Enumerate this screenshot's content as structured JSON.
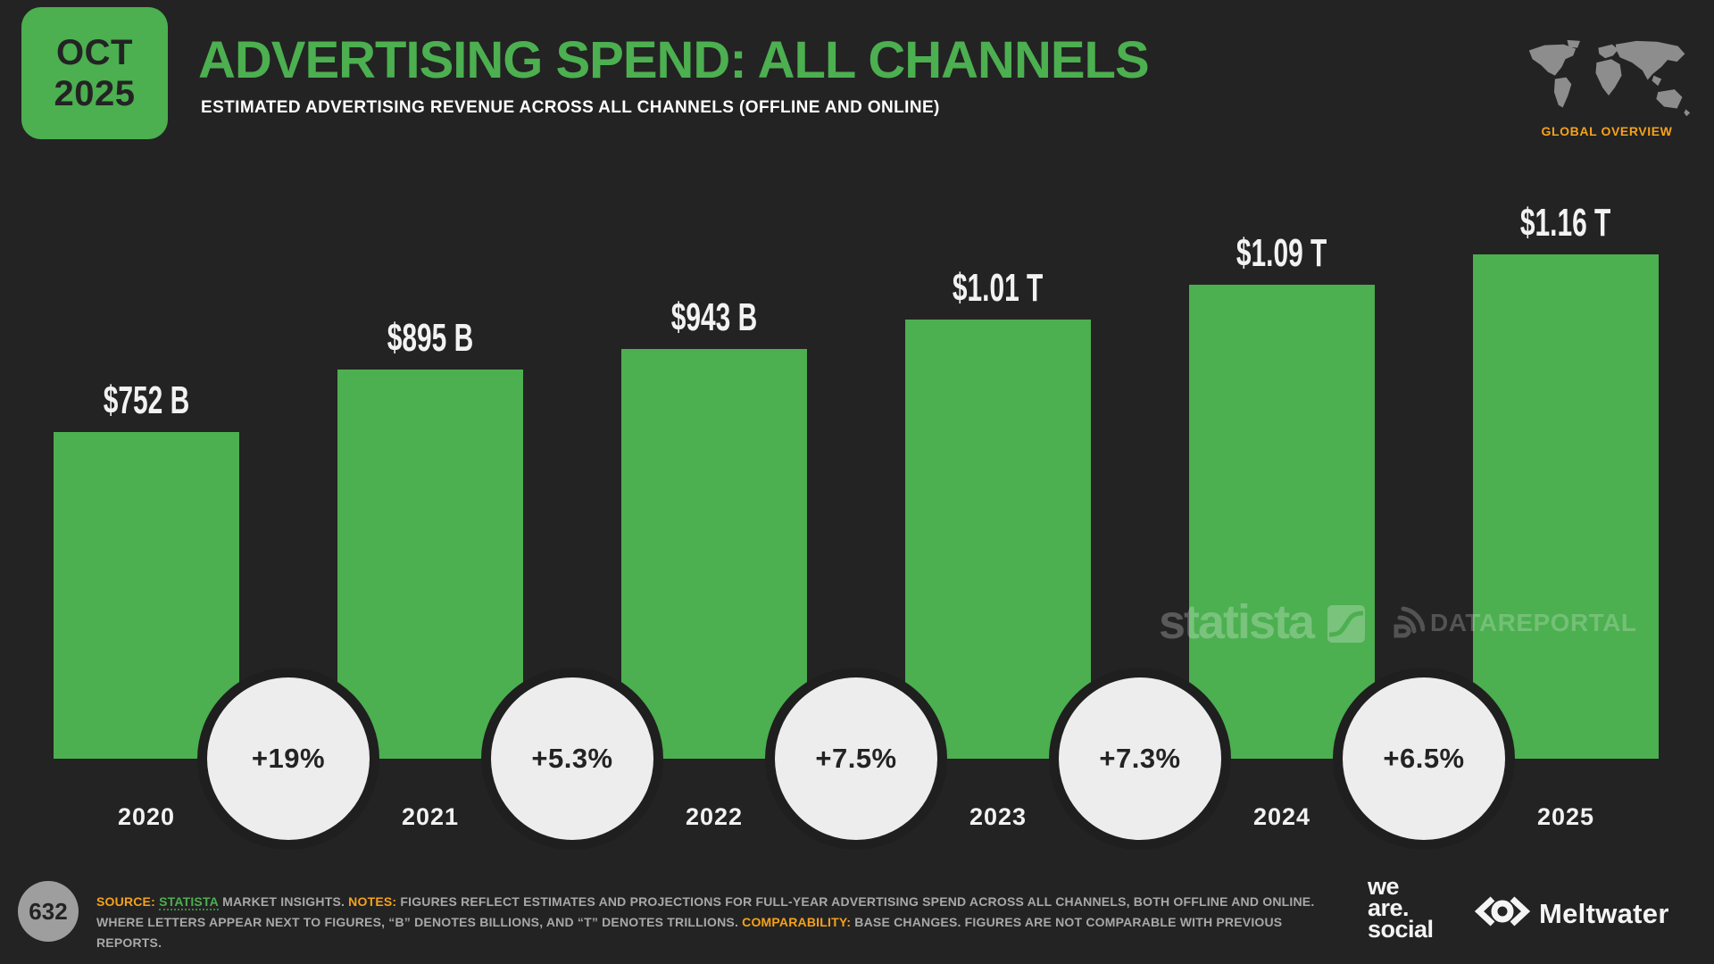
{
  "header": {
    "date_badge": {
      "line1": "OCT",
      "line2": "2025"
    },
    "title": "ADVERTISING SPEND: ALL CHANNELS",
    "subtitle": "ESTIMATED ADVERTISING REVENUE ACROSS ALL CHANNELS (OFFLINE AND ONLINE)",
    "region_label": "GLOBAL OVERVIEW"
  },
  "chart_data": {
    "type": "bar",
    "title": "Advertising Spend: All Channels",
    "categories": [
      "2020",
      "2021",
      "2022",
      "2023",
      "2024",
      "2025"
    ],
    "values_usd_billions": [
      752,
      895,
      943,
      1010,
      1090,
      1160
    ],
    "value_labels": [
      "$752 B",
      "$895 B",
      "$943 B",
      "$1.01 T",
      "$1.09 T",
      "$1.16 T"
    ],
    "growth_labels": [
      "+19%",
      "+5.3%",
      "+7.5%",
      "+7.3%",
      "+6.5%"
    ],
    "ylim": [
      0,
      1250
    ],
    "grid": false,
    "bar_color": "#4caf50",
    "growth_circle_color": "#ededed"
  },
  "watermarks": {
    "statista": "statista",
    "datareportal": "DATAREPORTAL"
  },
  "footer": {
    "page_number": "632",
    "source_label": "SOURCE:",
    "source_link": "STATISTA",
    "source_rest": "MARKET INSIGHTS.",
    "notes_label": "NOTES:",
    "notes_text": "FIGURES REFLECT ESTIMATES AND PROJECTIONS FOR FULL-YEAR ADVERTISING SPEND ACROSS ALL CHANNELS, BOTH OFFLINE AND ONLINE. WHERE LETTERS APPEAR NEXT TO FIGURES, “B” DENOTES BILLIONS, AND “T” DENOTES TRILLIONS.",
    "comparability_label": "COMPARABILITY:",
    "comparability_text": "BASE CHANGES. FIGURES ARE NOT COMPARABLE WITH PREVIOUS REPORTS.",
    "we_are_social": [
      "we",
      "are.",
      "social"
    ],
    "meltwater": "Meltwater"
  },
  "colors": {
    "background": "#232323",
    "green": "#4caf50",
    "orange": "#f5a21b",
    "text_white": "#f2f2f2",
    "text_gray": "#a8a8a8",
    "circle_fill": "#ededed",
    "page_circle": "#9e9e9e",
    "map_gray": "#8d8d8d"
  }
}
